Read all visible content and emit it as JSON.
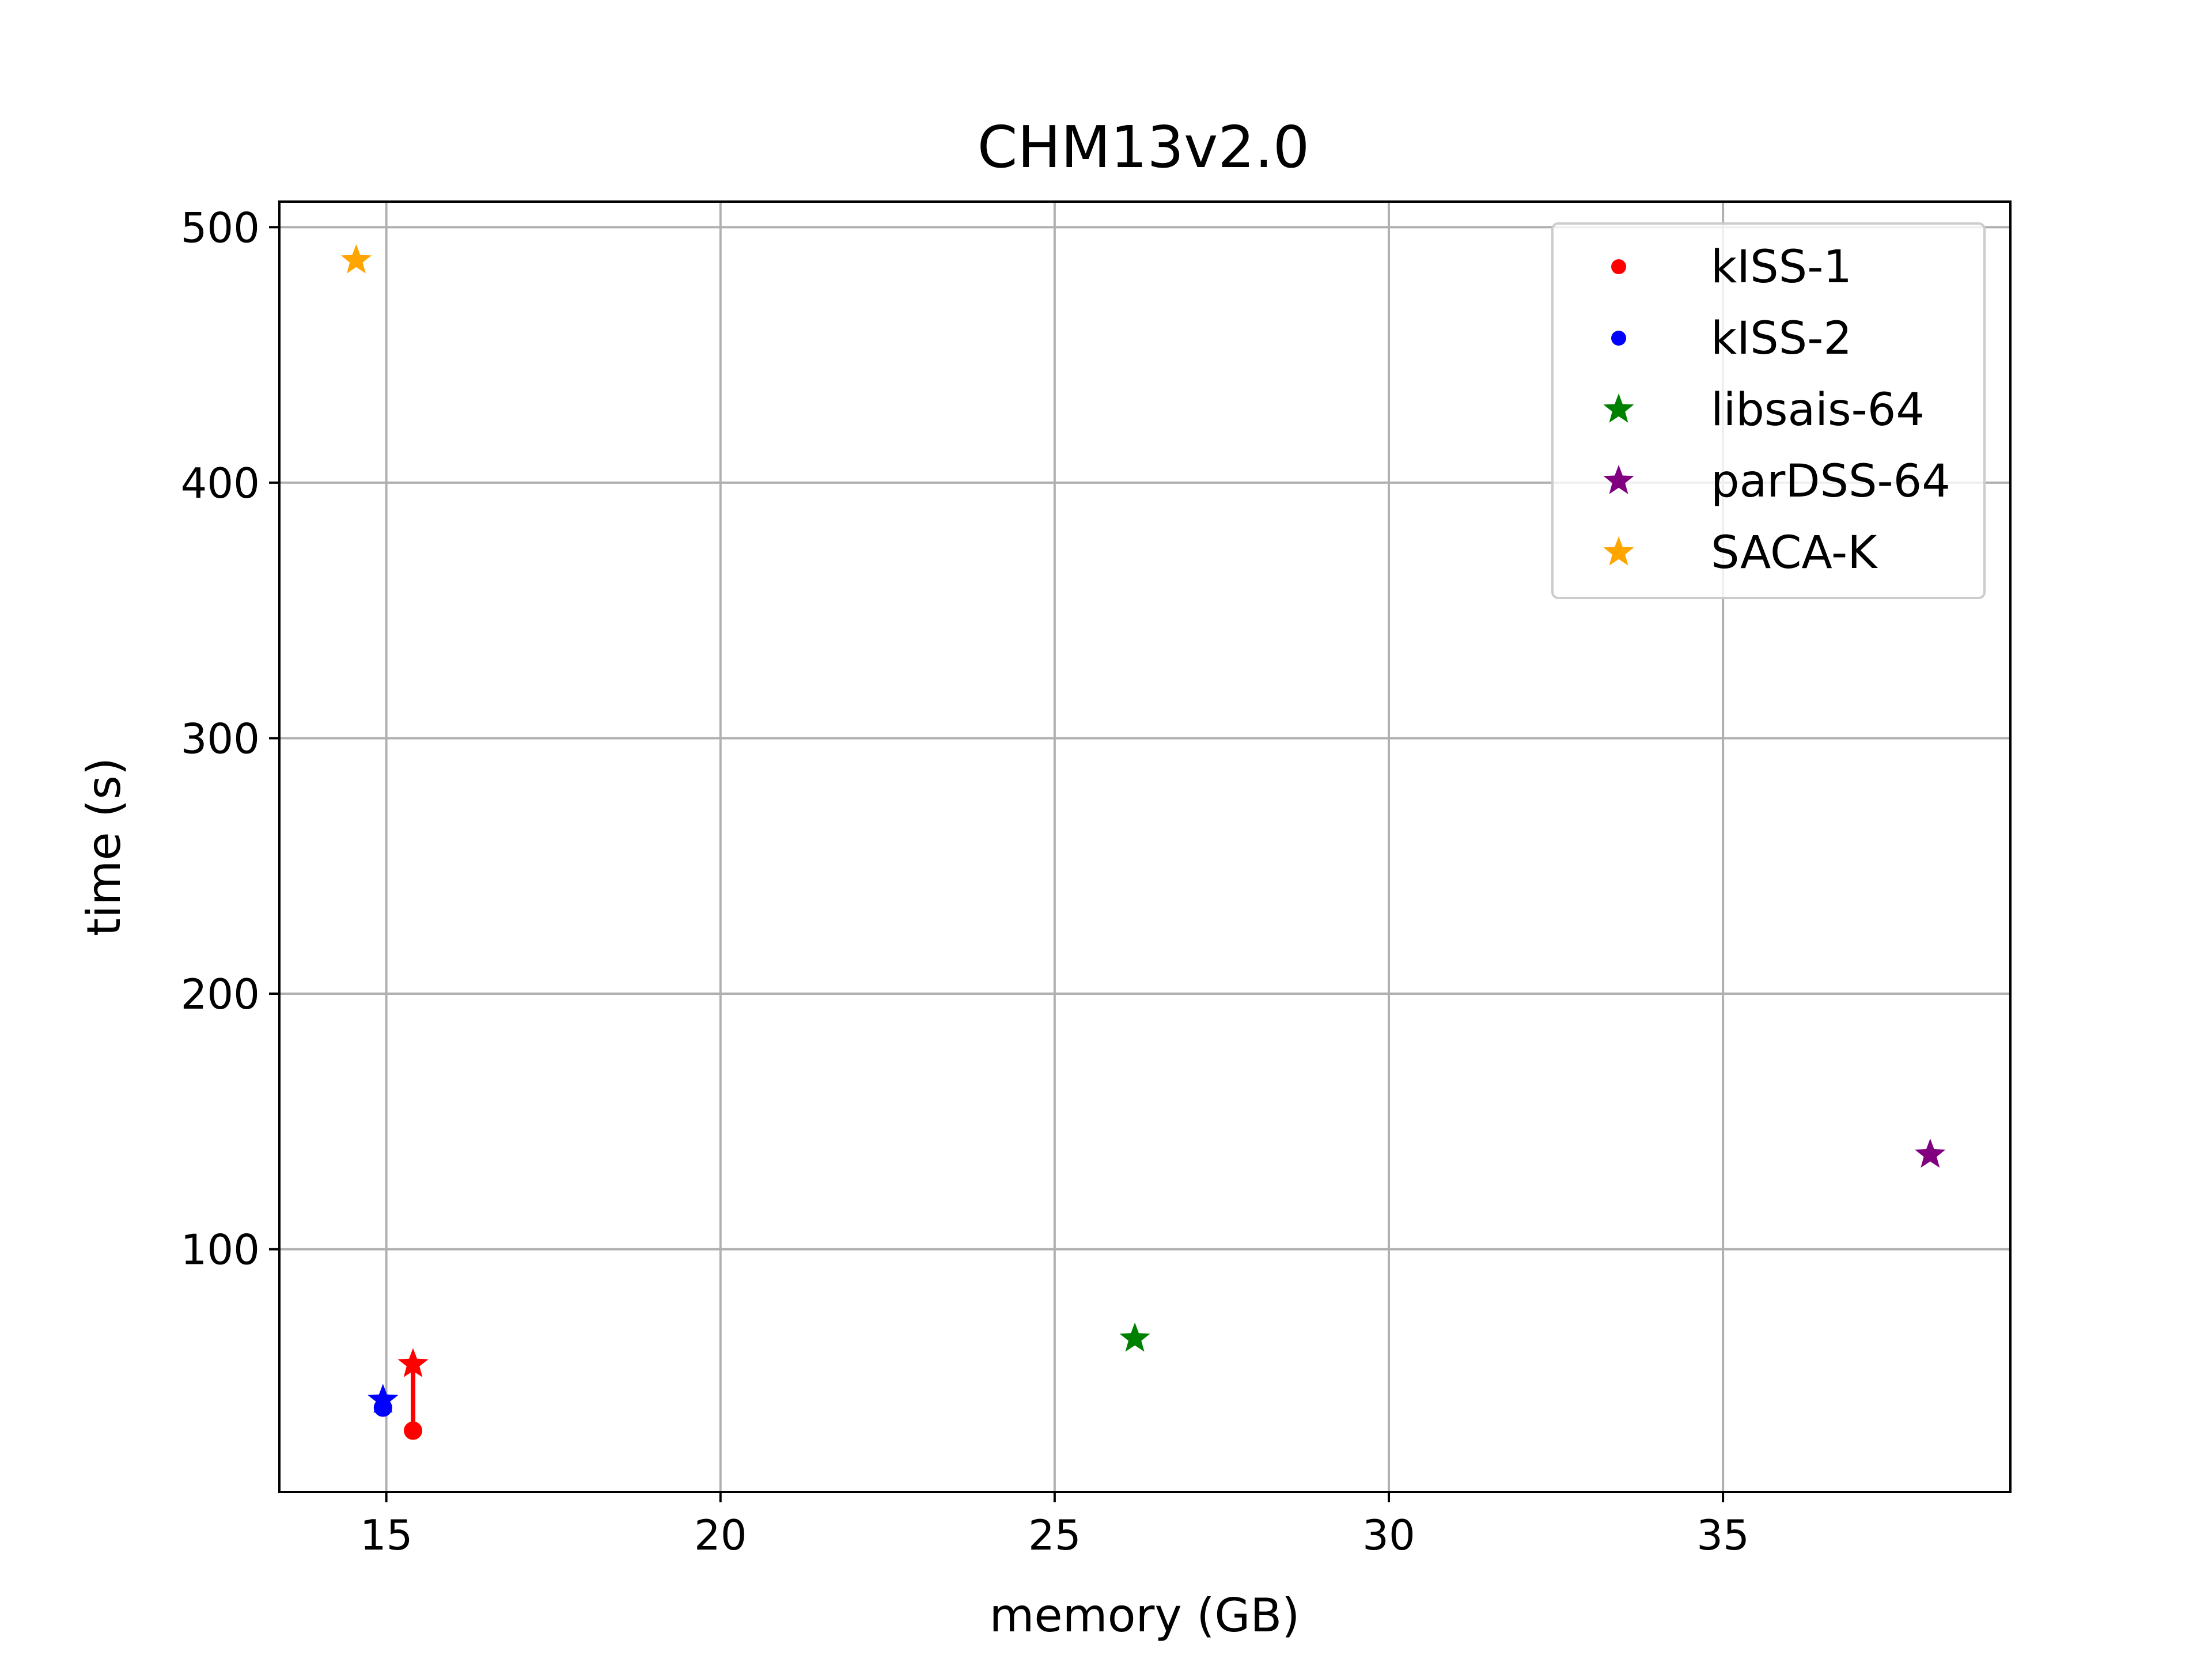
{
  "chart_data": {
    "type": "scatter",
    "title": "CHM13v2.0",
    "xlabel": "memory (GB)",
    "ylabel": "time (s)",
    "xlim": [
      13.4,
      39.3
    ],
    "ylim": [
      5,
      510
    ],
    "xticks": [
      15,
      20,
      25,
      30,
      35
    ],
    "yticks": [
      100,
      200,
      300,
      400,
      500
    ],
    "grid": true,
    "legend_position": "top-right",
    "series": [
      {
        "name": "kISS-1",
        "color": "#ff0000",
        "marker": "circle",
        "points": [
          {
            "x": 15.4,
            "y": 29
          }
        ]
      },
      {
        "name": "kISS-2",
        "color": "#0000ff",
        "marker": "circle",
        "points": [
          {
            "x": 14.95,
            "y": 38
          }
        ]
      },
      {
        "name": "libsais-64",
        "color": "#008000",
        "marker": "star",
        "points": [
          {
            "x": 26.2,
            "y": 65
          }
        ]
      },
      {
        "name": "parDSS-64",
        "color": "#800080",
        "marker": "star",
        "points": [
          {
            "x": 38.1,
            "y": 137
          }
        ]
      },
      {
        "name": "SACA-K",
        "color": "#ffa500",
        "marker": "star",
        "points": [
          {
            "x": 14.55,
            "y": 487
          }
        ]
      }
    ],
    "connectors": [
      {
        "color": "#ff0000",
        "from": {
          "x": 15.4,
          "y": 29
        },
        "to": {
          "x": 15.4,
          "y": 55
        },
        "end_marker": "star"
      },
      {
        "color": "#0000ff",
        "from": {
          "x": 14.95,
          "y": 38
        },
        "to": {
          "x": 14.95,
          "y": 41
        },
        "end_marker": "star"
      }
    ]
  }
}
